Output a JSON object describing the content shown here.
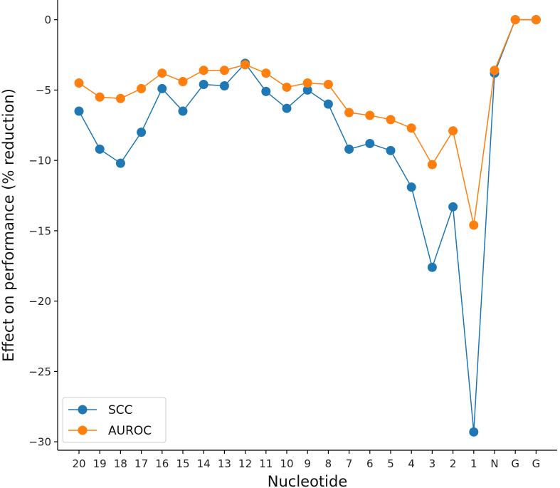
{
  "chart_data": {
    "type": "line",
    "title": "",
    "xlabel": "Nucleotide",
    "ylabel": "Effect on performance (% reduction)",
    "categories": [
      "20",
      "19",
      "18",
      "17",
      "16",
      "15",
      "14",
      "13",
      "12",
      "11",
      "10",
      "9",
      "8",
      "7",
      "6",
      "5",
      "4",
      "3",
      "2",
      "1",
      "N",
      "G",
      "G"
    ],
    "ylim": [
      -30.6,
      1.4
    ],
    "yticks": [
      0,
      -5,
      -10,
      -15,
      -20,
      -25,
      -30
    ],
    "ytick_labels": [
      "0",
      "−5",
      "−10",
      "−15",
      "−20",
      "−25",
      "−30"
    ],
    "grid": false,
    "legend_location": "lower-left",
    "series": [
      {
        "name": "SCC",
        "color": "#1f77b4",
        "values": [
          -6.5,
          -9.2,
          -10.2,
          -8.0,
          -4.9,
          -6.5,
          -4.6,
          -4.7,
          -3.1,
          -5.1,
          -6.3,
          -5.0,
          -6.0,
          -9.2,
          -8.8,
          -9.3,
          -11.9,
          -17.6,
          -13.3,
          -29.3,
          -3.8,
          0.0,
          0.0
        ]
      },
      {
        "name": "AUROC",
        "color": "#ff7f0e",
        "values": [
          -4.5,
          -5.5,
          -5.6,
          -4.9,
          -3.8,
          -4.4,
          -3.6,
          -3.6,
          -3.2,
          -3.8,
          -4.8,
          -4.5,
          -4.6,
          -6.6,
          -6.8,
          -7.1,
          -7.7,
          -10.3,
          -7.9,
          -14.6,
          -3.6,
          0.0,
          0.0
        ]
      }
    ]
  }
}
